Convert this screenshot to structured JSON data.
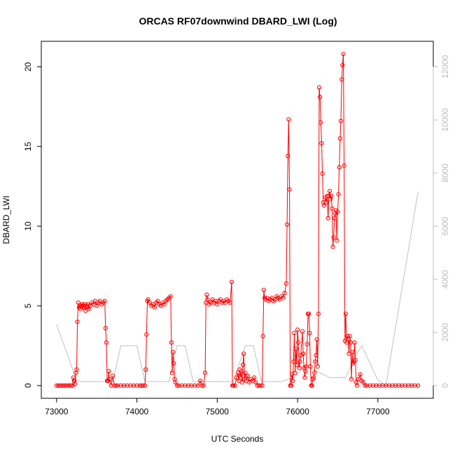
{
  "colors": {
    "primary_series": "#ff0000",
    "altitude_series": "#c0c0c0",
    "right_axis": "#bdbdbd",
    "frame": "#000000"
  },
  "chart_data": {
    "type": "line",
    "title": "ORCAS RF07downwind DBARD_LWI (Log)",
    "xlabel": "UTC Seconds",
    "ylabel": "DBARD_LWI",
    "xlim": [
      72810,
      77690
    ],
    "ylim": [
      -0.8,
      21.6
    ],
    "y2lim": [
      -480,
      12960
    ],
    "x_ticks": [
      73000,
      74000,
      75000,
      76000,
      77000
    ],
    "x_tick_labels": [
      "73000",
      "74000",
      "75000",
      "76000",
      "77000"
    ],
    "y_ticks": [
      0,
      5,
      10,
      15,
      20
    ],
    "y_tick_labels": [
      "0",
      "5",
      "10",
      "15",
      "20"
    ],
    "y2_ticks": [
      0,
      2000,
      4000,
      6000,
      8000,
      10000,
      12000
    ],
    "y2_tick_labels": [
      "0",
      "2000",
      "4000",
      "6000",
      "8000",
      "10000",
      "12000"
    ],
    "grid": false,
    "series": [
      {
        "role": "primary",
        "style": "line+points",
        "points": [
          [
            73000,
            0
          ],
          [
            73020,
            0
          ],
          [
            73040,
            0
          ],
          [
            73060,
            0
          ],
          [
            73080,
            0
          ],
          [
            73100,
            0
          ],
          [
            73120,
            0
          ],
          [
            73140,
            0
          ],
          [
            73160,
            0
          ],
          [
            73180,
            0
          ],
          [
            73200,
            0
          ],
          [
            73210,
            0.5
          ],
          [
            73220,
            0.3
          ],
          [
            73230,
            0.1
          ],
          [
            73240,
            0.8
          ],
          [
            73250,
            1.0
          ],
          [
            73260,
            4.0
          ],
          [
            73270,
            5.2
          ],
          [
            73280,
            4.9
          ],
          [
            73290,
            5.0
          ],
          [
            73300,
            4.8
          ],
          [
            73310,
            5.0
          ],
          [
            73320,
            5.1
          ],
          [
            73330,
            4.9
          ],
          [
            73340,
            5.0
          ],
          [
            73350,
            5.1
          ],
          [
            73360,
            4.7
          ],
          [
            73370,
            4.9
          ],
          [
            73380,
            5.0
          ],
          [
            73390,
            5.1
          ],
          [
            73400,
            4.8
          ],
          [
            73420,
            5.0
          ],
          [
            73440,
            5.2
          ],
          [
            73460,
            5.1
          ],
          [
            73480,
            5.3
          ],
          [
            73500,
            5.0
          ],
          [
            73520,
            5.2
          ],
          [
            73540,
            5.3
          ],
          [
            73560,
            5.1
          ],
          [
            73580,
            5.2
          ],
          [
            73600,
            5.3
          ],
          [
            73610,
            3.6
          ],
          [
            73620,
            2.7
          ],
          [
            73630,
            0.3
          ],
          [
            73640,
            0.3
          ],
          [
            73650,
            0.9
          ],
          [
            73660,
            0.4
          ],
          [
            73680,
            0
          ],
          [
            73700,
            0.6
          ],
          [
            73720,
            0
          ],
          [
            73740,
            0
          ],
          [
            73760,
            0
          ],
          [
            73800,
            0
          ],
          [
            73840,
            0
          ],
          [
            73880,
            0
          ],
          [
            73920,
            0
          ],
          [
            73960,
            0
          ],
          [
            74000,
            0
          ],
          [
            74040,
            0
          ],
          [
            74060,
            0
          ],
          [
            74080,
            0
          ],
          [
            74100,
            0
          ],
          [
            74110,
            1.0
          ],
          [
            74120,
            3.2
          ],
          [
            74130,
            5.3
          ],
          [
            74140,
            5.4
          ],
          [
            74160,
            5.2
          ],
          [
            74180,
            5.0
          ],
          [
            74200,
            5.1
          ],
          [
            74220,
            4.9
          ],
          [
            74240,
            5.2
          ],
          [
            74260,
            5.3
          ],
          [
            74280,
            5.1
          ],
          [
            74300,
            5.0
          ],
          [
            74320,
            5.2
          ],
          [
            74340,
            5.1
          ],
          [
            74360,
            5.3
          ],
          [
            74380,
            5.4
          ],
          [
            74400,
            5.5
          ],
          [
            74420,
            5.6
          ],
          [
            74430,
            2.7
          ],
          [
            74440,
            0.8
          ],
          [
            74450,
            2.1
          ],
          [
            74460,
            1.4
          ],
          [
            74470,
            0.4
          ],
          [
            74480,
            0.2
          ],
          [
            74500,
            0
          ],
          [
            74520,
            0
          ],
          [
            74560,
            0
          ],
          [
            74600,
            0
          ],
          [
            74640,
            0
          ],
          [
            74680,
            0
          ],
          [
            74720,
            0
          ],
          [
            74760,
            0
          ],
          [
            74790,
            0.3
          ],
          [
            74810,
            0
          ],
          [
            74830,
            0
          ],
          [
            74850,
            0.8
          ],
          [
            74860,
            5.2
          ],
          [
            74870,
            5.7
          ],
          [
            74880,
            5.4
          ],
          [
            74900,
            5.1
          ],
          [
            74920,
            5.2
          ],
          [
            74940,
            5.4
          ],
          [
            74960,
            5.2
          ],
          [
            74980,
            5.3
          ],
          [
            75000,
            5.1
          ],
          [
            75020,
            5.3
          ],
          [
            75040,
            5.4
          ],
          [
            75060,
            5.2
          ],
          [
            75080,
            5.3
          ],
          [
            75100,
            5.2
          ],
          [
            75120,
            5.4
          ],
          [
            75140,
            5.3
          ],
          [
            75160,
            5.2
          ],
          [
            75180,
            6.5
          ],
          [
            75190,
            0
          ],
          [
            75200,
            0
          ],
          [
            75220,
            0
          ],
          [
            75240,
            0.5
          ],
          [
            75260,
            0.8
          ],
          [
            75270,
            0.3
          ],
          [
            75280,
            1.0
          ],
          [
            75290,
            0.5
          ],
          [
            75300,
            0.9
          ],
          [
            75310,
            0.2
          ],
          [
            75320,
            1.3
          ],
          [
            75330,
            2.0
          ],
          [
            75340,
            0.4
          ],
          [
            75350,
            0.8
          ],
          [
            75360,
            0.3
          ],
          [
            75380,
            0.6
          ],
          [
            75400,
            0.2
          ],
          [
            75420,
            0.4
          ],
          [
            75440,
            0.3
          ],
          [
            75460,
            0.5
          ],
          [
            75480,
            0.2
          ],
          [
            75500,
            0
          ],
          [
            75520,
            0
          ],
          [
            75540,
            0
          ],
          [
            75560,
            0
          ],
          [
            75570,
            3.1
          ],
          [
            75580,
            6.0
          ],
          [
            75590,
            5.5
          ],
          [
            75600,
            5.4
          ],
          [
            75620,
            5.5
          ],
          [
            75640,
            5.3
          ],
          [
            75660,
            5.4
          ],
          [
            75680,
            5.5
          ],
          [
            75700,
            5.3
          ],
          [
            75720,
            5.4
          ],
          [
            75740,
            5.6
          ],
          [
            75760,
            5.5
          ],
          [
            75780,
            5.4
          ],
          [
            75800,
            5.6
          ],
          [
            75820,
            5.5
          ],
          [
            75840,
            5.8
          ],
          [
            75860,
            6.4
          ],
          [
            75870,
            10.1
          ],
          [
            75880,
            14.4
          ],
          [
            75890,
            16.7
          ],
          [
            75900,
            12.3
          ],
          [
            75910,
            0
          ],
          [
            75920,
            0
          ],
          [
            75930,
            0.7
          ],
          [
            75940,
            0.3
          ],
          [
            75950,
            1.5
          ],
          [
            75960,
            3.3
          ],
          [
            75970,
            0.8
          ],
          [
            75980,
            2.3
          ],
          [
            75990,
            1.3
          ],
          [
            76000,
            3.5
          ],
          [
            76010,
            2.7
          ],
          [
            76020,
            1.1
          ],
          [
            76030,
            1.5
          ],
          [
            76040,
            1.9
          ],
          [
            76060,
            3.4
          ],
          [
            76070,
            2.0
          ],
          [
            76080,
            1.1
          ],
          [
            76090,
            0.5
          ],
          [
            76100,
            0.9
          ],
          [
            76110,
            1.2
          ],
          [
            76120,
            2.6
          ],
          [
            76130,
            4.5
          ],
          [
            76140,
            4.5
          ],
          [
            76150,
            3.3
          ],
          [
            76160,
            1.2
          ],
          [
            76170,
            0
          ],
          [
            76180,
            0
          ],
          [
            76190,
            0.4
          ],
          [
            76200,
            0.5
          ],
          [
            76210,
            0.8
          ],
          [
            76220,
            1.5
          ],
          [
            76230,
            1.9
          ],
          [
            76240,
            2.9
          ],
          [
            76250,
            1.2
          ],
          [
            76260,
            4.5
          ],
          [
            76270,
            18.7
          ],
          [
            76280,
            18.1
          ],
          [
            76290,
            16.5
          ],
          [
            76300,
            15.2
          ],
          [
            76310,
            13.3
          ],
          [
            76320,
            11.5
          ],
          [
            76330,
            11.3
          ],
          [
            76350,
            11.8
          ],
          [
            76360,
            11.5
          ],
          [
            76370,
            11.9
          ],
          [
            76380,
            10.5
          ],
          [
            76390,
            11.9
          ],
          [
            76400,
            12.2
          ],
          [
            76410,
            11.7
          ],
          [
            76420,
            11.9
          ],
          [
            76430,
            11.1
          ],
          [
            76440,
            8.7
          ],
          [
            76450,
            9.3
          ],
          [
            76460,
            10.5
          ],
          [
            76470,
            10.8
          ],
          [
            76480,
            11.0
          ],
          [
            76490,
            9.1
          ],
          [
            76500,
            10.9
          ],
          [
            76510,
            12.0
          ],
          [
            76520,
            13.7
          ],
          [
            76530,
            15.5
          ],
          [
            76540,
            16.6
          ],
          [
            76550,
            19.2
          ],
          [
            76560,
            20.1
          ],
          [
            76570,
            20.8
          ],
          [
            76580,
            13.8
          ],
          [
            76590,
            2.8
          ],
          [
            76600,
            4.5
          ],
          [
            76610,
            2.7
          ],
          [
            76620,
            3.1
          ],
          [
            76630,
            2.9
          ],
          [
            76640,
            2.0
          ],
          [
            76650,
            3.1
          ],
          [
            76660,
            2.7
          ],
          [
            76670,
            0.4
          ],
          [
            76680,
            2.1
          ],
          [
            76690,
            1.4
          ],
          [
            76700,
            1.5
          ],
          [
            76710,
            2.7
          ],
          [
            76720,
            1.6
          ],
          [
            76730,
            0.2
          ],
          [
            76740,
            0
          ],
          [
            76760,
            0.4
          ],
          [
            76780,
            0.7
          ],
          [
            76800,
            0.3
          ],
          [
            76820,
            0.2
          ],
          [
            76840,
            0
          ],
          [
            76860,
            0
          ],
          [
            76900,
            0
          ],
          [
            76940,
            0
          ],
          [
            76980,
            0
          ],
          [
            77020,
            0
          ],
          [
            77060,
            0
          ],
          [
            77100,
            0
          ],
          [
            77140,
            0
          ],
          [
            77180,
            0
          ],
          [
            77220,
            0
          ],
          [
            77260,
            0
          ],
          [
            77300,
            0
          ],
          [
            77340,
            0
          ],
          [
            77380,
            0
          ],
          [
            77420,
            0
          ],
          [
            77460,
            0
          ],
          [
            77500,
            0
          ]
        ]
      },
      {
        "role": "altitude",
        "axis": "right",
        "style": "line",
        "points": [
          [
            73000,
            2300
          ],
          [
            73250,
            200
          ],
          [
            73300,
            150
          ],
          [
            73700,
            150
          ],
          [
            73800,
            1500
          ],
          [
            74000,
            1500
          ],
          [
            74100,
            150
          ],
          [
            74400,
            150
          ],
          [
            74500,
            1500
          ],
          [
            74600,
            1500
          ],
          [
            74700,
            150
          ],
          [
            74850,
            150
          ],
          [
            75000,
            150
          ],
          [
            75200,
            150
          ],
          [
            75350,
            1500
          ],
          [
            75450,
            1500
          ],
          [
            75550,
            150
          ],
          [
            75800,
            150
          ],
          [
            75950,
            300
          ],
          [
            76000,
            450
          ],
          [
            76100,
            750
          ],
          [
            76200,
            600
          ],
          [
            76400,
            300
          ],
          [
            76600,
            300
          ],
          [
            76700,
            1000
          ],
          [
            76800,
            1500
          ],
          [
            77000,
            200
          ],
          [
            77100,
            0
          ],
          [
            77500,
            7300
          ]
        ]
      }
    ]
  }
}
